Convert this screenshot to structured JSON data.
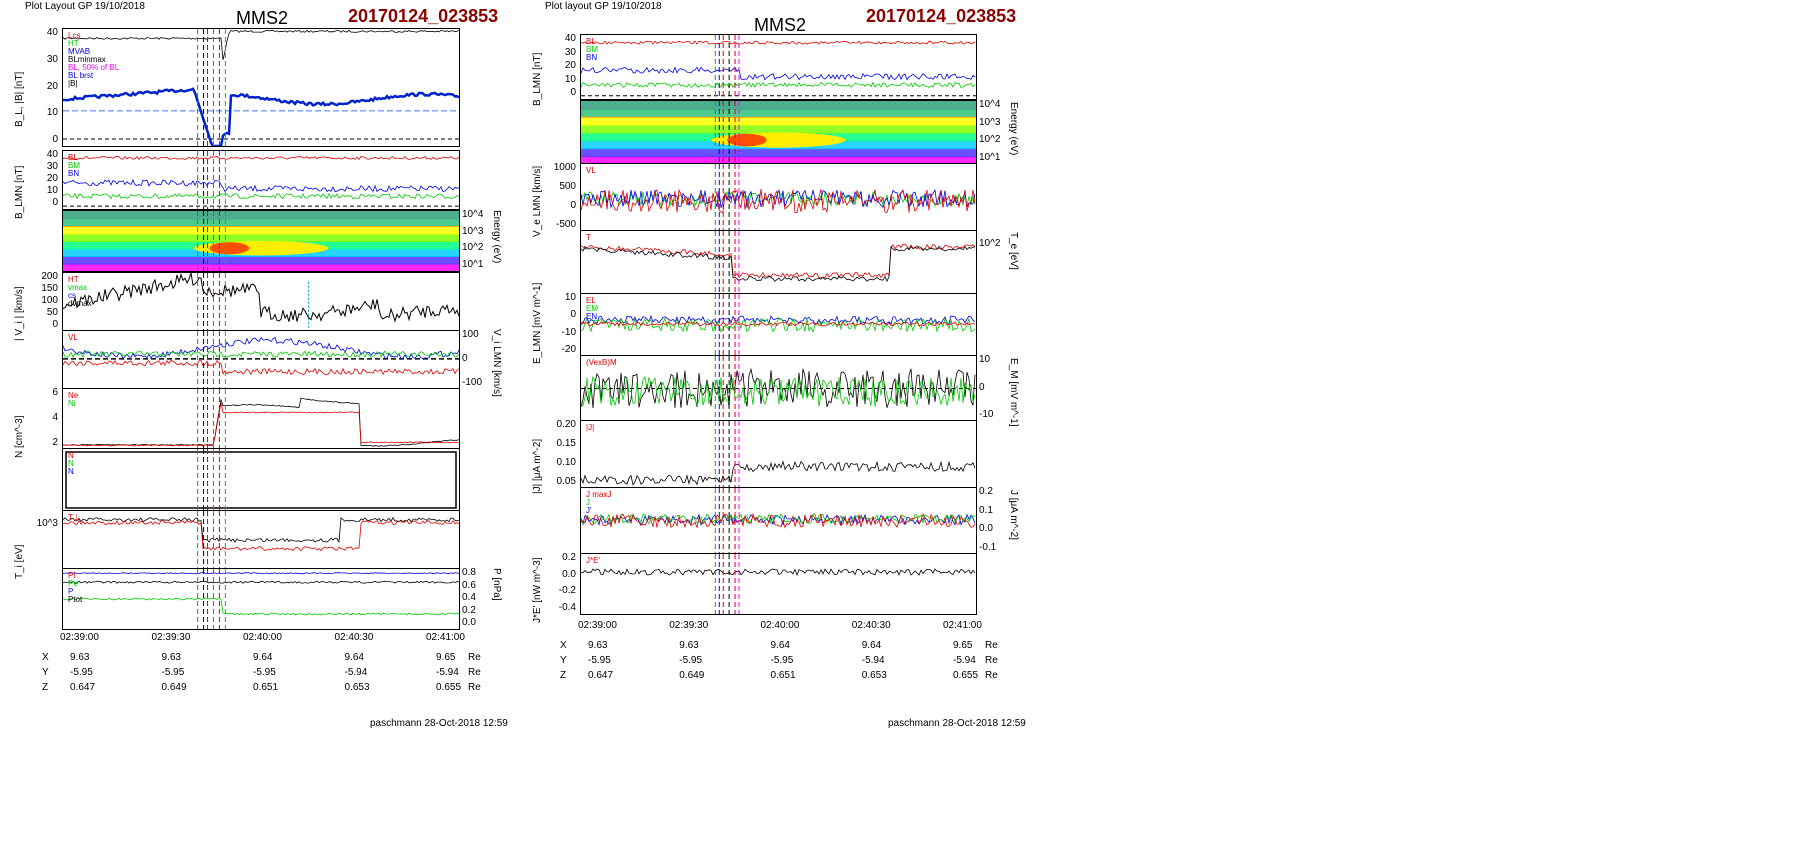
{
  "header_text": "Plot Layout GP 19/10/2018",
  "header_text_right": "Plot layout GP 19/10/2018",
  "spacecraft": "MMS2",
  "event_id": "20170124_023853",
  "footer": "paschmann 28-Oct-2018 12:59",
  "time_ticks": [
    "02:39:00",
    "02:39:30",
    "02:40:00",
    "02:40:30",
    "02:41:00"
  ],
  "ephemeris": {
    "rows": [
      {
        "name": "X",
        "values": [
          "9.63",
          "9.63",
          "9.64",
          "9.64",
          "9.65"
        ],
        "unit": "Re"
      },
      {
        "name": "Y",
        "values": [
          "-5.95",
          "-5.95",
          "-5.95",
          "-5.94",
          "-5.94"
        ],
        "unit": "Re"
      },
      {
        "name": "Z",
        "values": [
          "0.647",
          "0.649",
          "0.651",
          "0.653",
          "0.655"
        ],
        "unit": "Re"
      }
    ]
  },
  "colors": {
    "red": "#e00000",
    "green": "#00cc00",
    "blue": "#0000ee",
    "black": "#000000",
    "magenta": "#ff00ff",
    "cyan": "#00aacc"
  },
  "left": {
    "panels": [
      {
        "id": "L1",
        "ylabel": "B_L, |B| [nT]",
        "yticks": [
          "40",
          "30",
          "20",
          "10",
          "0"
        ],
        "legend": [
          "Lcs",
          "HT",
          "MVAB",
          "BLminmax",
          "BL, 50% of BL",
          "BL brst",
          "|B|"
        ]
      },
      {
        "id": "L2",
        "ylabel": "B_LMN [nT]",
        "yticks": [
          "40",
          "30",
          "20",
          "10",
          "0"
        ],
        "legend": [
          "BL",
          "BM",
          "BN"
        ]
      },
      {
        "id": "L3",
        "ylabel_right": "Energy (eV)",
        "yticks_right": [
          "10^4",
          "10^3",
          "10^2",
          "10^1"
        ]
      },
      {
        "id": "L4",
        "ylabel": "| V_i | [km/s]",
        "yticks": [
          "200",
          "150",
          "100",
          "50",
          "0"
        ],
        "legend": [
          "HT",
          "vmax",
          "cs",
          "dvmax"
        ]
      },
      {
        "id": "L5",
        "ylabel_right": "V_i LMN [km/s]",
        "yticks_right": [
          "100",
          "0",
          "-100"
        ],
        "legend": [
          "VL"
        ]
      },
      {
        "id": "L6",
        "ylabel": "N [cm^-3]",
        "yticks": [
          "6",
          "4",
          "2"
        ],
        "legend": [
          "Ne",
          "Ni"
        ]
      },
      {
        "id": "L7",
        "legend": [
          "N",
          "N",
          "N"
        ]
      },
      {
        "id": "L8",
        "ylabel": "T_i [eV]",
        "yticks": [
          "10^3"
        ],
        "legend": [
          "T⊥"
        ]
      },
      {
        "id": "L9",
        "ylabel_right": "P [nPa]",
        "yticks_right": [
          "0.8",
          "0.6",
          "0.4",
          "0.2",
          "0.0"
        ],
        "legend": [
          "Pi",
          "Pe",
          "P",
          "Ptot"
        ]
      }
    ]
  },
  "right": {
    "panels": [
      {
        "id": "R1",
        "ylabel": "B_LMN [nT]",
        "yticks": [
          "40",
          "30",
          "20",
          "10",
          "0"
        ],
        "legend": [
          "BL",
          "BM",
          "BN"
        ]
      },
      {
        "id": "R2",
        "ylabel_right": "Energy (eV)",
        "yticks_right": [
          "10^4",
          "10^3",
          "10^2",
          "10^1"
        ]
      },
      {
        "id": "R3",
        "ylabel": "V_e LMN [km/s]",
        "yticks": [
          "1000",
          "500",
          "0",
          "-500"
        ],
        "legend": [
          "VL"
        ]
      },
      {
        "id": "R4",
        "ylabel_right": "T_e [eV]",
        "yticks_right": [
          "10^2"
        ],
        "legend": [
          "T"
        ]
      },
      {
        "id": "R5",
        "ylabel": "E_LMN [mV m^-1]",
        "yticks": [
          "10",
          "0",
          "-10",
          "-20"
        ],
        "legend": [
          "EL",
          "EM",
          "EN"
        ]
      },
      {
        "id": "R6",
        "ylabel_right": "E_M [mV m^-1]",
        "yticks_right": [
          "10",
          "0",
          "-10"
        ],
        "legend": [
          "(VexB)M"
        ]
      },
      {
        "id": "R7",
        "ylabel": "|J| [μA m^-2]",
        "yticks": [
          "0.20",
          "0.15",
          "0.10",
          "0.05"
        ],
        "legend": [
          "|J|"
        ]
      },
      {
        "id": "R8",
        "ylabel_right": "J [μA m^-2]",
        "yticks_right": [
          "0.2",
          "0.1",
          "0.0",
          "-0.1"
        ],
        "legend": [
          "J maxJ",
          "J",
          "J'"
        ]
      },
      {
        "id": "R9",
        "ylabel": "J*E' [nW m^-3]",
        "yticks": [
          "0.2",
          "0.0",
          "-0.2",
          "-0.4"
        ],
        "legend": [
          "J*E'"
        ]
      }
    ]
  }
}
